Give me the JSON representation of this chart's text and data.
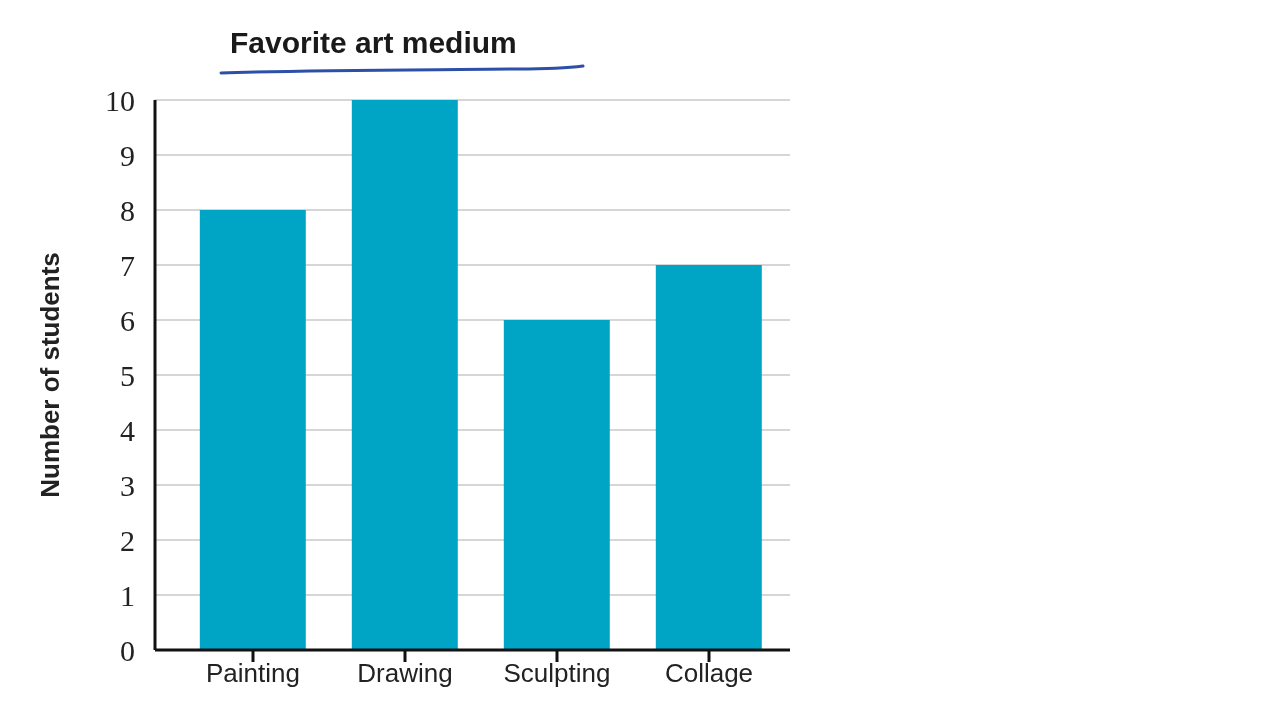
{
  "chart_data": {
    "type": "bar",
    "title": "Favorite art medium",
    "ylabel": "Number of students",
    "categories": [
      "Painting",
      "Drawing",
      "Sculpting",
      "Collage"
    ],
    "values": [
      8,
      10,
      6,
      7
    ],
    "color": "#00a5c6",
    "ylim": [
      0,
      10
    ],
    "yticks": [
      0,
      1,
      2,
      3,
      4,
      5,
      6,
      7,
      8,
      9,
      10
    ],
    "grid": "y"
  }
}
